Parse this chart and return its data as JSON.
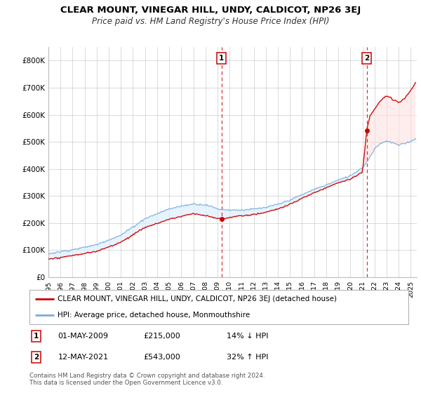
{
  "title": "CLEAR MOUNT, VINEGAR HILL, UNDY, CALDICOT, NP26 3EJ",
  "subtitle": "Price paid vs. HM Land Registry's House Price Index (HPI)",
  "legend_label_red": "CLEAR MOUNT, VINEGAR HILL, UNDY, CALDICOT, NP26 3EJ (detached house)",
  "legend_label_blue": "HPI: Average price, detached house, Monmouthshire",
  "annotation1_date": "01-MAY-2009",
  "annotation1_price": "£215,000",
  "annotation1_hpi": "14% ↓ HPI",
  "annotation2_date": "12-MAY-2021",
  "annotation2_price": "£543,000",
  "annotation2_hpi": "32% ↑ HPI",
  "footer": "Contains HM Land Registry data © Crown copyright and database right 2024.\nThis data is licensed under the Open Government Licence v3.0.",
  "ylim": [
    0,
    850000
  ],
  "yticks": [
    0,
    100000,
    200000,
    300000,
    400000,
    500000,
    600000,
    700000,
    800000
  ],
  "ytick_labels": [
    "£0",
    "£100K",
    "£200K",
    "£300K",
    "£400K",
    "£500K",
    "£600K",
    "£700K",
    "£800K"
  ],
  "xlim_start": 1995.0,
  "xlim_end": 2025.5,
  "vline1_x": 2009.33,
  "vline2_x": 2021.37,
  "marker1_x": 2009.33,
  "marker1_y": 215000,
  "marker2_x": 2021.37,
  "marker2_y": 543000,
  "red_color": "#cc0000",
  "blue_color": "#7aabdb",
  "fill_color": "#ddeeff",
  "background_color": "#ffffff",
  "grid_color": "#cccccc"
}
